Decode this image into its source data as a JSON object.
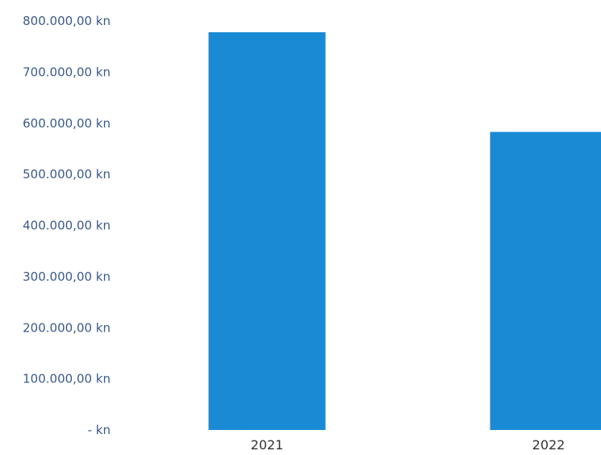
{
  "chart_data": {
    "type": "bar",
    "categories": [
      "2021",
      "2022"
    ],
    "values": [
      778000,
      583000
    ],
    "title": "",
    "xlabel": "",
    "ylabel": "",
    "ylim": [
      0,
      800000
    ],
    "yticks": [
      {
        "value": 0,
        "label": "-   kn"
      },
      {
        "value": 100000,
        "label": "100.000,00 kn"
      },
      {
        "value": 200000,
        "label": "200.000,00 kn"
      },
      {
        "value": 300000,
        "label": "300.000,00 kn"
      },
      {
        "value": 400000,
        "label": "400.000,00 kn"
      },
      {
        "value": 500000,
        "label": "500.000,00 kn"
      },
      {
        "value": 600000,
        "label": "600.000,00 kn"
      },
      {
        "value": 700000,
        "label": "700.000,00 kn"
      },
      {
        "value": 800000,
        "label": "800.000,00 kn"
      }
    ],
    "grid": false,
    "legend": "none",
    "bar_color": "#1a8ad4",
    "tick_color": "#3a5a8a"
  }
}
